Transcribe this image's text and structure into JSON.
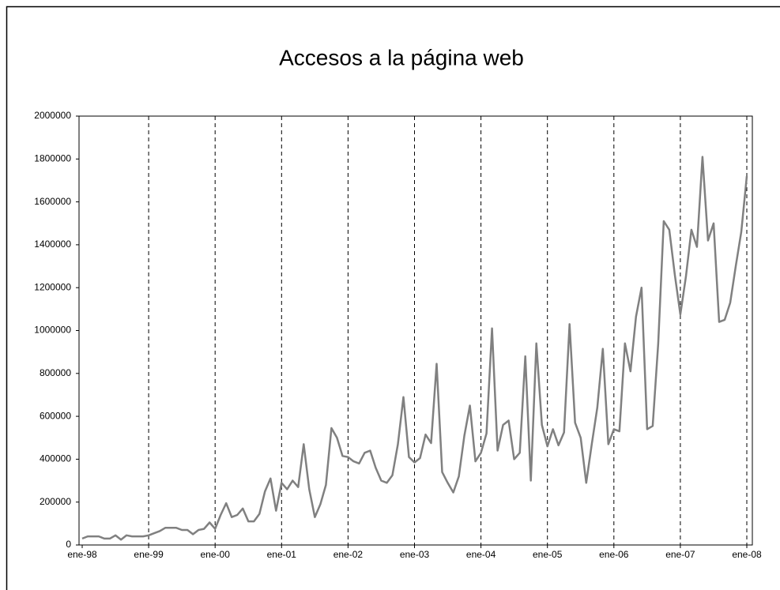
{
  "chart_data": {
    "type": "line",
    "title": "Accesos a la página web",
    "categories": [
      "ene-98",
      null,
      null,
      null,
      null,
      null,
      null,
      null,
      null,
      null,
      null,
      null,
      "ene-99",
      null,
      null,
      null,
      null,
      null,
      null,
      null,
      null,
      null,
      null,
      null,
      "ene-00",
      null,
      null,
      null,
      null,
      null,
      null,
      null,
      null,
      null,
      null,
      null,
      "ene-01",
      null,
      null,
      null,
      null,
      null,
      null,
      null,
      null,
      null,
      null,
      null,
      "ene-02",
      null,
      null,
      null,
      null,
      null,
      null,
      null,
      null,
      null,
      null,
      null,
      "ene-03",
      null,
      null,
      null,
      null,
      null,
      null,
      null,
      null,
      null,
      null,
      null,
      "ene-04",
      null,
      null,
      null,
      null,
      null,
      null,
      null,
      null,
      null,
      null,
      null,
      "ene-05",
      null,
      null,
      null,
      null,
      null,
      null,
      null,
      null,
      null,
      null,
      null,
      "ene-06",
      null,
      null,
      null,
      null,
      null,
      null,
      null,
      null,
      null,
      null,
      null,
      "ene-07",
      null,
      null,
      null,
      null,
      null,
      null,
      null,
      null,
      null,
      null,
      null,
      "ene-08"
    ],
    "series": [
      {
        "color": "#808080",
        "values": [
          30000,
          40000,
          40000,
          40000,
          30000,
          30000,
          45000,
          25000,
          45000,
          40000,
          40000,
          40000,
          45000,
          55000,
          65000,
          80000,
          80000,
          80000,
          70000,
          70000,
          50000,
          70000,
          75000,
          105000,
          75000,
          140000,
          195000,
          130000,
          140000,
          170000,
          110000,
          110000,
          145000,
          250000,
          310000,
          160000,
          290000,
          260000,
          300000,
          270000,
          470000,
          260000,
          130000,
          190000,
          280000,
          545000,
          500000,
          415000,
          410000,
          390000,
          380000,
          430000,
          440000,
          360000,
          300000,
          290000,
          325000,
          470000,
          690000,
          410000,
          385000,
          405000,
          515000,
          475000,
          845000,
          340000,
          290000,
          245000,
          320000,
          510000,
          650000,
          390000,
          430000,
          520000,
          1010000,
          440000,
          560000,
          580000,
          400000,
          430000,
          880000,
          300000,
          940000,
          560000,
          460000,
          540000,
          465000,
          525000,
          1030000,
          570000,
          500000,
          290000,
          470000,
          640000,
          915000,
          470000,
          540000,
          530000,
          940000,
          810000,
          1065000,
          1200000,
          540000,
          555000,
          940000,
          1510000,
          1470000,
          1260000,
          1075000,
          1250000,
          1470000,
          1390000,
          1810000,
          1420000,
          1500000,
          1040000,
          1050000,
          1130000,
          1300000,
          1460000,
          1720000
        ]
      }
    ],
    "ylim": [
      0,
      2000000
    ],
    "yticks": [
      0,
      200000,
      400000,
      600000,
      800000,
      1000000,
      1200000,
      1400000,
      1600000,
      1800000,
      2000000
    ],
    "xgrid": true
  }
}
